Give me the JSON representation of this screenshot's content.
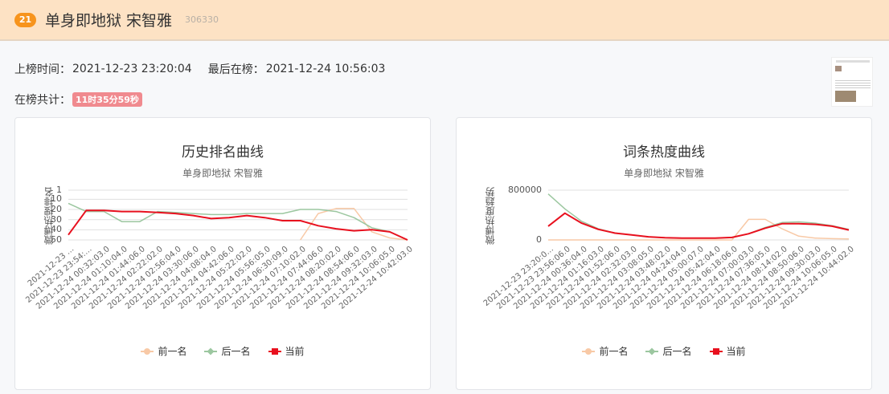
{
  "header": {
    "rank": "21",
    "title": "单身即地狱 宋智雅",
    "hot_value": "306330",
    "colors": {
      "background": "#fde2c4",
      "rank_badge": "#f7941d"
    }
  },
  "info": {
    "first_on_label": "上榜时间：",
    "first_on_value": "2021-12-23 23:20:04",
    "last_on_label": "最后在榜：",
    "last_on_value": "2021-12-24 10:56:03",
    "duration_label": "在榜共计：",
    "duration_value": "11时35分59秒"
  },
  "legend": {
    "prev": "前一名",
    "next": "后一名",
    "current": "当前"
  },
  "colors": {
    "prev": "#f8c9a6",
    "next": "#9cc7a0",
    "current": "#e8101e"
  },
  "chart_data": [
    {
      "type": "line",
      "title": "历史排名曲线",
      "subtitle": "单身即地狱 宋智雅",
      "xlabel": "",
      "ylabel": "微博热搜排名",
      "y_ticks": [
        "1",
        "10",
        "20",
        "30",
        "40",
        "50"
      ],
      "ylim": [
        1,
        50
      ],
      "y_inverted": true,
      "grid": true,
      "legend_position": "bottom",
      "x_ticks": [
        "2021-12-23 …",
        "2021-12-23 23:54:…",
        "2021-12-24 00:32:03.0",
        "2021-12-24 01:10:04.0",
        "2021-12-24 01:44:06.0",
        "2021-12-24 02:22:02.0",
        "2021-12-24 02:56:04.0",
        "2021-12-24 03:30:06.0",
        "2021-12-24 04:08:04.0",
        "2021-12-24 04:42:06.0",
        "2021-12-24 05:22:02.0",
        "2021-12-24 05:56:05.0",
        "2021-12-24 06:30:09.0",
        "2021-12-24 07:10:02.0",
        "2021-12-24 07:44:06.0",
        "2021-12-24 08:20:02.0",
        "2021-12-24 08:54:06.0",
        "2021-12-24 09:32:03.0",
        "2021-12-24 10:06:05.0",
        "2021-12-24 10:42:03.0"
      ],
      "series": [
        {
          "name": "前一名",
          "values": [
            null,
            null,
            null,
            null,
            null,
            null,
            null,
            null,
            null,
            null,
            null,
            null,
            null,
            50,
            24,
            19,
            19,
            42,
            48,
            50
          ]
        },
        {
          "name": "后一名",
          "values": [
            14,
            22,
            22,
            32,
            32,
            22,
            23,
            24,
            25,
            25,
            24,
            24,
            24,
            20,
            20,
            22,
            28,
            38,
            42,
            50
          ]
        },
        {
          "name": "当前",
          "values": [
            45,
            21,
            21,
            22,
            22,
            23,
            24,
            26,
            29,
            28,
            26,
            28,
            31,
            31,
            36,
            39,
            41,
            40,
            42,
            50
          ]
        }
      ]
    },
    {
      "type": "line",
      "title": "词条热度曲线",
      "subtitle": "单身即地狱 宋智雅",
      "xlabel": "",
      "ylabel": "微博热度趋势",
      "y_ticks": [
        "0",
        "800000"
      ],
      "ylim": [
        0,
        800000
      ],
      "grid": true,
      "legend_position": "bottom",
      "x_ticks": [
        "2021-12-23 23:20:0…",
        "2021-12-23 23:56:06.0",
        "2021-12-24 00:36:04.0",
        "2021-12-24 01:16:03.0",
        "2021-12-24 01:52:06.0",
        "2021-12-24 02:32:03.0",
        "2021-12-24 03:08:05.0",
        "2021-12-24 03:48:02.0",
        "2021-12-24 04:24:04.0",
        "2021-12-24 05:00:07.0",
        "2021-12-24 05:42:04.0",
        "2021-12-24 06:18:06.0",
        "2021-12-24 07:00:03.0",
        "2021-12-24 07:36:05.0",
        "2021-12-24 08:14:02.0",
        "2021-12-24 08:50:06.0",
        "2021-12-24 09:30:03.0",
        "2021-12-24 10:06:05.0",
        "2021-12-24 10:44:02.0"
      ],
      "series": [
        {
          "name": "前一名",
          "values": [
            0,
            0,
            0,
            0,
            0,
            0,
            0,
            0,
            0,
            0,
            0,
            0,
            330000,
            330000,
            180000,
            60000,
            30000,
            20000,
            15000
          ]
        },
        {
          "name": "后一名",
          "values": [
            740000,
            500000,
            300000,
            180000,
            110000,
            80000,
            50000,
            35000,
            30000,
            28000,
            30000,
            40000,
            100000,
            200000,
            280000,
            290000,
            270000,
            230000,
            170000
          ]
        },
        {
          "name": "当前",
          "values": [
            220000,
            430000,
            270000,
            170000,
            110000,
            80000,
            50000,
            35000,
            30000,
            28000,
            30000,
            40000,
            100000,
            190000,
            260000,
            260000,
            250000,
            220000,
            160000
          ]
        }
      ]
    }
  ]
}
